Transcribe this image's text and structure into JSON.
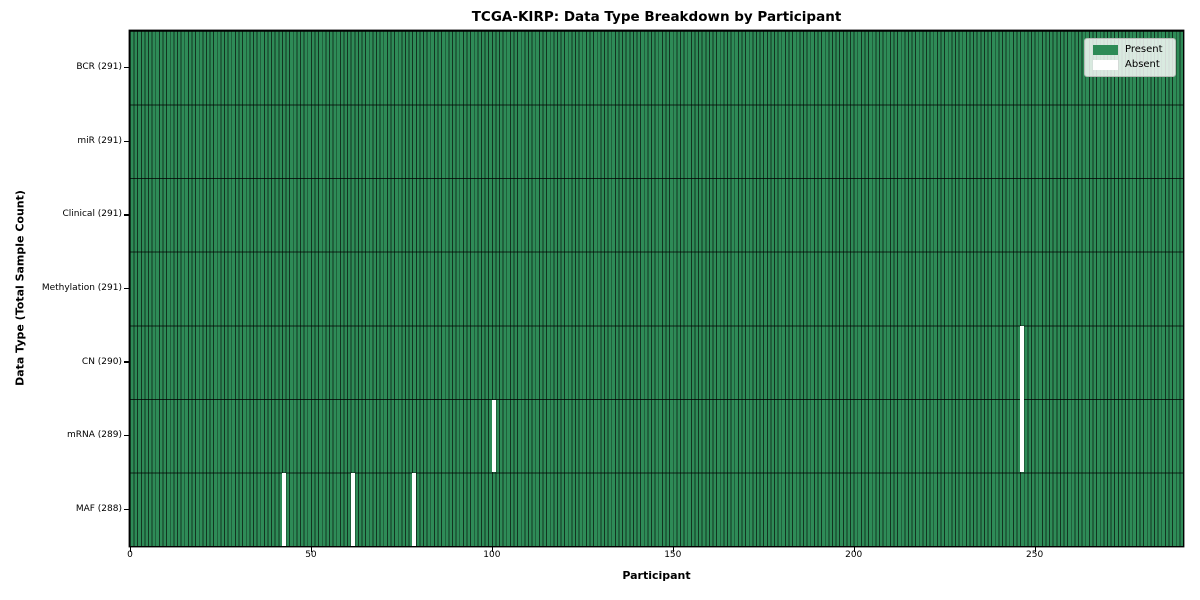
{
  "chart": {
    "title": "TCGA-KIRP: Data Type Breakdown by Participant",
    "xlabel": "Participant",
    "ylabel": "Data Type (Total Sample Count)",
    "legend": {
      "present": "Present",
      "absent": "Absent"
    },
    "colors": {
      "present": "#2e8b57",
      "absent": "#ffffff",
      "bar_edge": "rgba(0,0,0,0.62)",
      "row_line": "rgba(0,0,0,0.75)",
      "spine": "#000000"
    }
  },
  "chart_data": {
    "type": "heatmap",
    "title": "TCGA-KIRP: Data Type Breakdown by Participant",
    "xlabel": "Participant",
    "ylabel": "Data Type (Total Sample Count)",
    "n_participants": 291,
    "x_ticks": [
      0,
      50,
      100,
      150,
      200,
      250
    ],
    "x_range": [
      0,
      291
    ],
    "legend_position": "upper right",
    "legend": [
      {
        "label": "Present",
        "color": "#2e8b57"
      },
      {
        "label": "Absent",
        "color": "#ffffff"
      }
    ],
    "rows": [
      {
        "label": "BCR (291)",
        "data_type": "BCR",
        "present_count": 291,
        "absent_participants": []
      },
      {
        "label": "miR (291)",
        "data_type": "miR",
        "present_count": 291,
        "absent_participants": []
      },
      {
        "label": "Clinical (291)",
        "data_type": "Clinical",
        "present_count": 291,
        "absent_participants": []
      },
      {
        "label": "Methylation (291)",
        "data_type": "Methylation",
        "present_count": 291,
        "absent_participants": []
      },
      {
        "label": "CN (290)",
        "data_type": "CN",
        "present_count": 290,
        "absent_participants": [
          246
        ]
      },
      {
        "label": "mRNA (289)",
        "data_type": "mRNA",
        "present_count": 289,
        "absent_participants": [
          100,
          246
        ]
      },
      {
        "label": "MAF (288)",
        "data_type": "MAF",
        "present_count": 288,
        "absent_participants": [
          42,
          61,
          78
        ]
      }
    ]
  }
}
